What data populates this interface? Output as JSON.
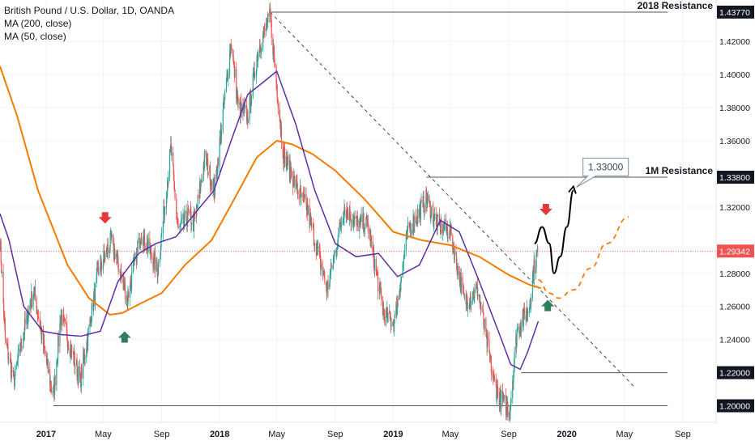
{
  "legend": {
    "symbol": "British Pound / U.S. Dollar, 1D, OANDA",
    "ma200": "MA (200, close)",
    "ma50": "MA (50, close)"
  },
  "colors": {
    "up": "#26a69a",
    "down": "#ef5350",
    "ma200": "#f57c00",
    "ma50": "#5e2ca5",
    "arrow_down": "#e53935",
    "arrow_up": "#2e7d5b",
    "projection": "#000000",
    "price_tag": "#ef5350"
  },
  "chart_data": {
    "type": "candlestick",
    "ylim": [
      1.19,
      1.445
    ],
    "xlim": [
      "2016-09-26",
      "2020-11-10"
    ],
    "x_ticks": [
      {
        "date": "2017-01-01",
        "label": "2017",
        "bold": true
      },
      {
        "date": "2017-05-01",
        "label": "May",
        "bold": false
      },
      {
        "date": "2017-09-01",
        "label": "Sep",
        "bold": false
      },
      {
        "date": "2018-01-01",
        "label": "2018",
        "bold": true
      },
      {
        "date": "2018-05-01",
        "label": "May",
        "bold": false
      },
      {
        "date": "2018-09-01",
        "label": "Sep",
        "bold": false
      },
      {
        "date": "2019-01-01",
        "label": "2019",
        "bold": true
      },
      {
        "date": "2019-05-01",
        "label": "May",
        "bold": false
      },
      {
        "date": "2019-09-01",
        "label": "Sep",
        "bold": false
      },
      {
        "date": "2020-01-01",
        "label": "2020",
        "bold": true
      },
      {
        "date": "2020-05-01",
        "label": "May",
        "bold": false
      },
      {
        "date": "2020-09-01",
        "label": "Sep",
        "bold": false
      }
    ],
    "y_ticks": [
      "1.24000",
      "1.26000",
      "1.28000",
      "1.32000",
      "1.36000",
      "1.38000",
      "1.40000",
      "1.42000"
    ],
    "price_path": [
      [
        "2016-09-26",
        1.3
      ],
      [
        "2016-10-07",
        1.24
      ],
      [
        "2016-10-25",
        1.215
      ],
      [
        "2016-11-15",
        1.245
      ],
      [
        "2016-12-06",
        1.27
      ],
      [
        "2016-12-30",
        1.23
      ],
      [
        "2017-01-16",
        1.205
      ],
      [
        "2017-02-01",
        1.255
      ],
      [
        "2017-03-14",
        1.215
      ],
      [
        "2017-04-03",
        1.25
      ],
      [
        "2017-04-20",
        1.28
      ],
      [
        "2017-05-18",
        1.3
      ],
      [
        "2017-06-21",
        1.265
      ],
      [
        "2017-07-20",
        1.305
      ],
      [
        "2017-08-24",
        1.282
      ],
      [
        "2017-09-20",
        1.355
      ],
      [
        "2017-10-06",
        1.305
      ],
      [
        "2017-10-26",
        1.315
      ],
      [
        "2017-11-09",
        1.31
      ],
      [
        "2017-12-01",
        1.35
      ],
      [
        "2017-12-21",
        1.33
      ],
      [
        "2018-01-25",
        1.42
      ],
      [
        "2018-02-09",
        1.38
      ],
      [
        "2018-03-01",
        1.375
      ],
      [
        "2018-03-23",
        1.415
      ],
      [
        "2018-04-17",
        1.435
      ],
      [
        "2018-05-15",
        1.352
      ],
      [
        "2018-06-14",
        1.33
      ],
      [
        "2018-07-03",
        1.32
      ],
      [
        "2018-08-15",
        1.27
      ],
      [
        "2018-09-20",
        1.32
      ],
      [
        "2018-10-15",
        1.31
      ],
      [
        "2018-11-08",
        1.31
      ],
      [
        "2018-12-12",
        1.255
      ],
      [
        "2019-01-03",
        1.25
      ],
      [
        "2019-02-01",
        1.305
      ],
      [
        "2019-03-12",
        1.325
      ],
      [
        "2019-04-02",
        1.31
      ],
      [
        "2019-05-01",
        1.305
      ],
      [
        "2019-05-31",
        1.263
      ],
      [
        "2019-06-28",
        1.27
      ],
      [
        "2019-07-31",
        1.215
      ],
      [
        "2019-08-12",
        1.205
      ],
      [
        "2019-09-03",
        1.197
      ],
      [
        "2019-09-18",
        1.245
      ],
      [
        "2019-10-14",
        1.26
      ],
      [
        "2019-10-25",
        1.285
      ],
      [
        "2019-11-01",
        1.2934
      ]
    ],
    "ma200": [
      [
        "2016-09-26",
        1.405
      ],
      [
        "2016-11-01",
        1.375
      ],
      [
        "2016-12-15",
        1.33
      ],
      [
        "2017-02-15",
        1.285
      ],
      [
        "2017-04-01",
        1.265
      ],
      [
        "2017-05-15",
        1.255
      ],
      [
        "2017-06-10",
        1.256
      ],
      [
        "2017-07-20",
        1.262
      ],
      [
        "2017-09-01",
        1.268
      ],
      [
        "2017-10-20",
        1.285
      ],
      [
        "2017-12-15",
        1.3
      ],
      [
        "2018-02-01",
        1.325
      ],
      [
        "2018-03-20",
        1.35
      ],
      [
        "2018-05-01",
        1.36
      ],
      [
        "2018-06-01",
        1.358
      ],
      [
        "2018-07-15",
        1.352
      ],
      [
        "2018-09-01",
        1.342
      ],
      [
        "2018-11-01",
        1.325
      ],
      [
        "2019-01-01",
        1.305
      ],
      [
        "2019-03-01",
        1.3
      ],
      [
        "2019-05-01",
        1.297
      ],
      [
        "2019-07-01",
        1.29
      ],
      [
        "2019-09-01",
        1.279
      ],
      [
        "2019-10-15",
        1.273
      ],
      [
        "2019-11-08",
        1.271
      ]
    ],
    "ma50": [
      [
        "2016-09-26",
        1.316
      ],
      [
        "2016-10-15",
        1.3
      ],
      [
        "2016-11-15",
        1.26
      ],
      [
        "2016-12-25",
        1.245
      ],
      [
        "2017-02-01",
        1.243
      ],
      [
        "2017-03-15",
        1.242
      ],
      [
        "2017-04-25",
        1.245
      ],
      [
        "2017-06-01",
        1.275
      ],
      [
        "2017-07-15",
        1.292
      ],
      [
        "2017-08-20",
        1.298
      ],
      [
        "2017-10-01",
        1.302
      ],
      [
        "2017-11-15",
        1.318
      ],
      [
        "2017-12-20",
        1.33
      ],
      [
        "2018-01-25",
        1.36
      ],
      [
        "2018-03-01",
        1.388
      ],
      [
        "2018-04-01",
        1.395
      ],
      [
        "2018-05-01",
        1.402
      ],
      [
        "2018-06-10",
        1.37
      ],
      [
        "2018-07-20",
        1.33
      ],
      [
        "2018-09-01",
        1.298
      ],
      [
        "2018-10-15",
        1.29
      ],
      [
        "2018-12-01",
        1.292
      ],
      [
        "2019-01-10",
        1.278
      ],
      [
        "2019-02-25",
        1.285
      ],
      [
        "2019-04-10",
        1.312
      ],
      [
        "2019-05-20",
        1.305
      ],
      [
        "2019-07-01",
        1.275
      ],
      [
        "2019-08-10",
        1.245
      ],
      [
        "2019-09-05",
        1.225
      ],
      [
        "2019-09-25",
        1.222
      ],
      [
        "2019-10-10",
        1.232
      ],
      [
        "2019-11-02",
        1.251
      ]
    ],
    "horizontal_lines": [
      {
        "from": "2018-04-17",
        "to": "2020-07-31",
        "y": 1.4377
      },
      {
        "from": "2019-03-12",
        "to": "2020-07-31",
        "y": 1.338
      },
      {
        "from": "2019-09-27",
        "to": "2020-07-31",
        "y": 1.22
      },
      {
        "from": "2017-01-16",
        "to": "2020-07-31",
        "y": 1.2
      }
    ],
    "trendline": {
      "from": [
        "2018-04-17",
        1.4377
      ],
      "to": [
        "2020-05-20",
        1.212
      ]
    },
    "projection_solid": [
      [
        "2019-10-25",
        1.298
      ],
      [
        "2019-11-10",
        1.308
      ],
      [
        "2019-11-25",
        1.298
      ],
      [
        "2019-12-05",
        1.28
      ],
      [
        "2019-12-18",
        1.29
      ],
      [
        "2020-01-01",
        1.308
      ],
      [
        "2020-01-15",
        1.33
      ]
    ],
    "projection_dashed": [
      [
        "2019-11-02",
        1.276
      ],
      [
        "2019-11-25",
        1.268
      ],
      [
        "2019-12-15",
        1.265
      ],
      [
        "2020-01-15",
        1.27
      ],
      [
        "2020-02-20",
        1.283
      ],
      [
        "2020-03-25",
        1.298
      ],
      [
        "2020-05-10",
        1.314
      ]
    ],
    "arrows": [
      {
        "date": "2017-05-05",
        "y": 1.313,
        "dir": "down"
      },
      {
        "date": "2017-06-15",
        "y": 1.242,
        "dir": "up"
      },
      {
        "date": "2019-11-18",
        "y": 1.318,
        "dir": "down"
      },
      {
        "date": "2019-11-22",
        "y": 1.261,
        "dir": "up"
      }
    ],
    "callout": {
      "text": "1.33000",
      "date": "2020-01-18",
      "y": 1.33
    },
    "annotations": [
      {
        "text": "2018 Resistance",
        "y": 1.4377,
        "value": "1.43770"
      },
      {
        "text": "1M Resistance",
        "y": 1.338,
        "value": "1.33800"
      },
      {
        "y": 1.22,
        "value": "1.22000"
      },
      {
        "y": 1.2,
        "value": "1.20000"
      }
    ],
    "current_price": {
      "y": 1.29342,
      "value": "1.29342"
    }
  }
}
